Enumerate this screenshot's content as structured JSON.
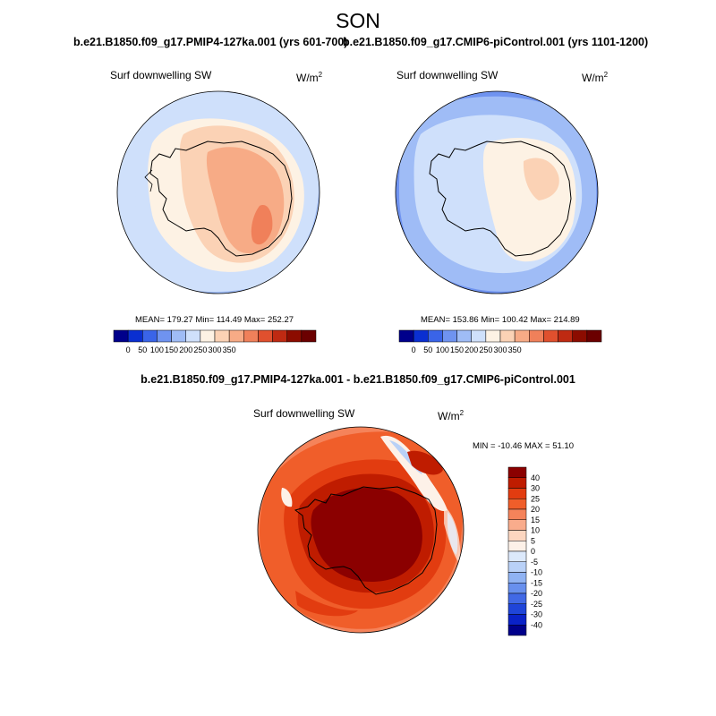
{
  "figure_title": "SON",
  "panels": [
    {
      "title": "b.e21.B1850.f09_g17.PMIP4-127ka.001 (yrs 601-700)",
      "variable": "Surf downwelling SW",
      "units_base": "W/m",
      "units_exp": "2",
      "stats": "MEAN= 179.27  Min= 114.49  Max= 252.27"
    },
    {
      "title": "b.e21.B1850.f09_g17.CMIP6-piControl.001 (yrs 1101-1200)",
      "variable": "Surf downwelling SW",
      "units_base": "W/m",
      "units_exp": "2",
      "stats": "MEAN= 153.86  Min= 100.42  Max= 214.89"
    }
  ],
  "difference": {
    "title": "b.e21.B1850.f09_g17.PMIP4-127ka.001 - b.e21.B1850.f09_g17.CMIP6-piControl.001",
    "variable": "Surf downwelling SW",
    "units_base": "W/m",
    "units_exp": "2",
    "stats": "MIN = -10.46 MAX =  51.10"
  },
  "colorbar_absolute": {
    "colors": [
      "#00008b",
      "#0a2fd1",
      "#3a64e8",
      "#6f93f0",
      "#9fbcf6",
      "#cfe0fb",
      "#fdf2e4",
      "#fbd2b5",
      "#f7ab86",
      "#f0805a",
      "#e0502e",
      "#bf2a12",
      "#8c0c00",
      "#6b0000"
    ],
    "tick_labels": [
      "0",
      "50",
      "100",
      "150",
      "200",
      "250",
      "300",
      "350"
    ]
  },
  "colorbar_difference": {
    "colors": [
      "#8b0000",
      "#bf1c00",
      "#e23c10",
      "#f05e2a",
      "#f5835a",
      "#f9ac8c",
      "#fcd6c0",
      "#fdf1e8",
      "#dce9fb",
      "#b9d1f7",
      "#90b3f3",
      "#6890ee",
      "#4169e6",
      "#1f45d9",
      "#0a22c8",
      "#00008b"
    ],
    "tick_labels": [
      "40",
      "30",
      "25",
      "20",
      "15",
      "10",
      "5",
      "0",
      "-5",
      "-10",
      "-15",
      "-20",
      "-25",
      "-30",
      "-40"
    ]
  }
}
